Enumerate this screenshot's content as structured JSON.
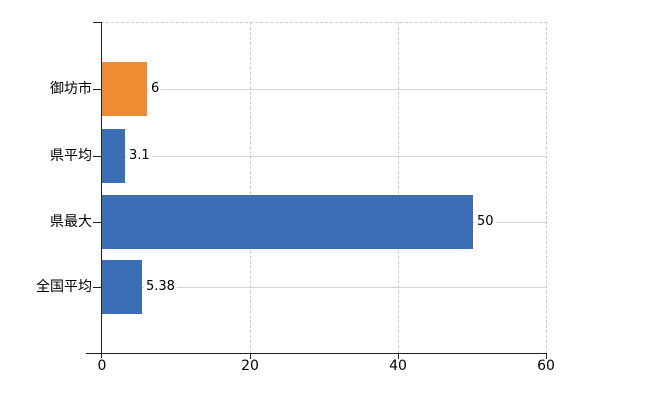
{
  "chart_data": {
    "type": "bar",
    "orientation": "horizontal",
    "title": "",
    "categories": [
      "御坊市",
      "県平均",
      "県最大",
      "全国平均"
    ],
    "values": [
      6,
      3.1,
      50,
      5.38
    ],
    "value_labels": [
      "6",
      "3.1",
      "50",
      "5.38"
    ],
    "xlim": [
      0,
      60
    ],
    "xticks": [
      0,
      20,
      40,
      60
    ],
    "xtick_labels": [
      "0",
      "20",
      "40",
      "60"
    ],
    "xlabel": "",
    "ylabel": "",
    "legend": "none",
    "grid": "dashed vertical gridlines at 20/40/60, dashed top border, light solid leader line right of each value label",
    "bar_colors": [
      "#ED8C32",
      "#3C6EB5",
      "#3C6EB5",
      "#3C6EB5"
    ]
  },
  "colors": {
    "highlight_orange": "#ED8C32",
    "bar_blue": "#3C6EB5",
    "gridline": "#cccccc",
    "leader_line": "#d4d4d4",
    "axis": "#222222",
    "text": "#000000",
    "background": "#ffffff"
  }
}
